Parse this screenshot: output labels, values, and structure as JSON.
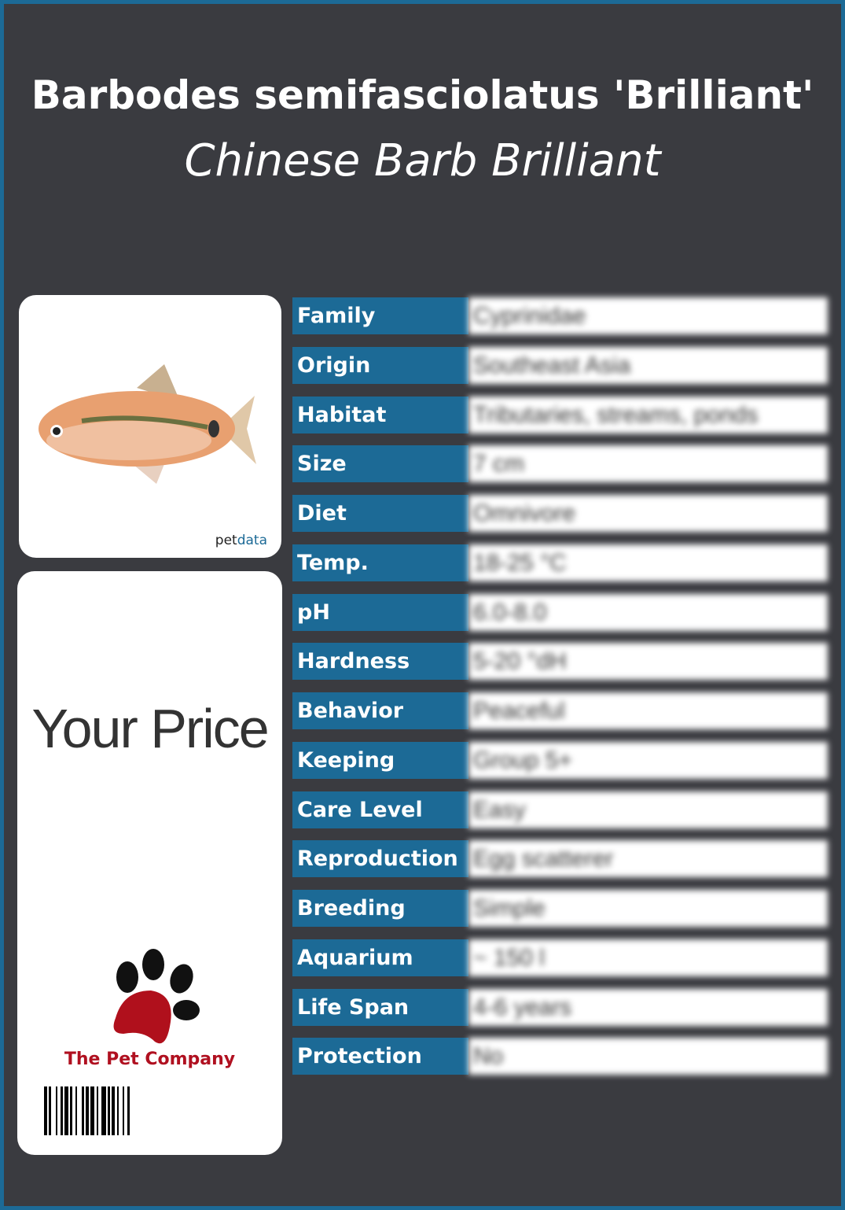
{
  "header": {
    "title": "Barbodes semifasciolatus 'Brilliant'",
    "subtitle": "Chinese Barb Brilliant"
  },
  "image_card": {
    "credit_prefix": "pet",
    "credit_suffix": "data",
    "icon": "fish-photo"
  },
  "price_card": {
    "price_label": "Your Price",
    "company": "The Pet Company",
    "logo_icon": "paw-icon",
    "barcode_icon": "barcode"
  },
  "colors": {
    "accent": "#1c6a96",
    "background": "#3a3b40",
    "brand_red": "#b01020"
  },
  "facts": [
    {
      "label": "Family",
      "value": "Cyprinidae"
    },
    {
      "label": "Origin",
      "value": "Southeast Asia"
    },
    {
      "label": "Habitat",
      "value": "Tributaries, streams, ponds"
    },
    {
      "label": "Size",
      "value": "7 cm"
    },
    {
      "label": "Diet",
      "value": "Omnivore"
    },
    {
      "label": "Temp.",
      "value": "18-25 °C"
    },
    {
      "label": "pH",
      "value": "6.0-8.0"
    },
    {
      "label": "Hardness",
      "value": "5-20 °dH"
    },
    {
      "label": "Behavior",
      "value": "Peaceful"
    },
    {
      "label": "Keeping",
      "value": "Group 5+"
    },
    {
      "label": "Care Level",
      "value": "Easy"
    },
    {
      "label": "Reproduction",
      "value": "Egg scatterer"
    },
    {
      "label": "Breeding",
      "value": "Simple"
    },
    {
      "label": "Aquarium",
      "value": "~ 150 l"
    },
    {
      "label": "Life Span",
      "value": "4-6 years"
    },
    {
      "label": "Protection",
      "value": "No"
    }
  ]
}
